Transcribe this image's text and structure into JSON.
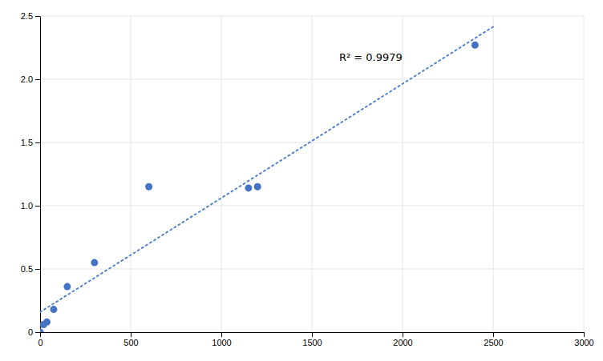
{
  "chart_data": {
    "type": "scatter",
    "series": [
      {
        "type": "scatter",
        "color": "#4472C4",
        "x": [
          0,
          18.75,
          37.5,
          75,
          150,
          300,
          600,
          1150,
          1200,
          2400
        ],
        "values": [
          0.0,
          0.06,
          0.08,
          0.18,
          0.36,
          0.55,
          1.15,
          1.14,
          1.15,
          2.27
        ]
      },
      {
        "type": "line",
        "color": "#5585C8",
        "line_style": "dotted",
        "x": [
          0,
          2500
        ],
        "values": [
          0.1587,
          2.4148
        ]
      }
    ],
    "annotations": [
      {
        "text": "R² = 0.9979",
        "x": 1650,
        "y": 2.17
      }
    ],
    "xlim": [
      0,
      3000
    ],
    "ylim": [
      0,
      2.5
    ],
    "xticks": [
      0,
      500,
      1000,
      1500,
      2000,
      2500,
      3000
    ],
    "yticks": [
      0,
      0.5,
      {
        "value": 1,
        "label": "1.0"
      },
      1.5,
      {
        "value": 2,
        "label": "2.0"
      },
      2.5
    ],
    "grid": true
  }
}
